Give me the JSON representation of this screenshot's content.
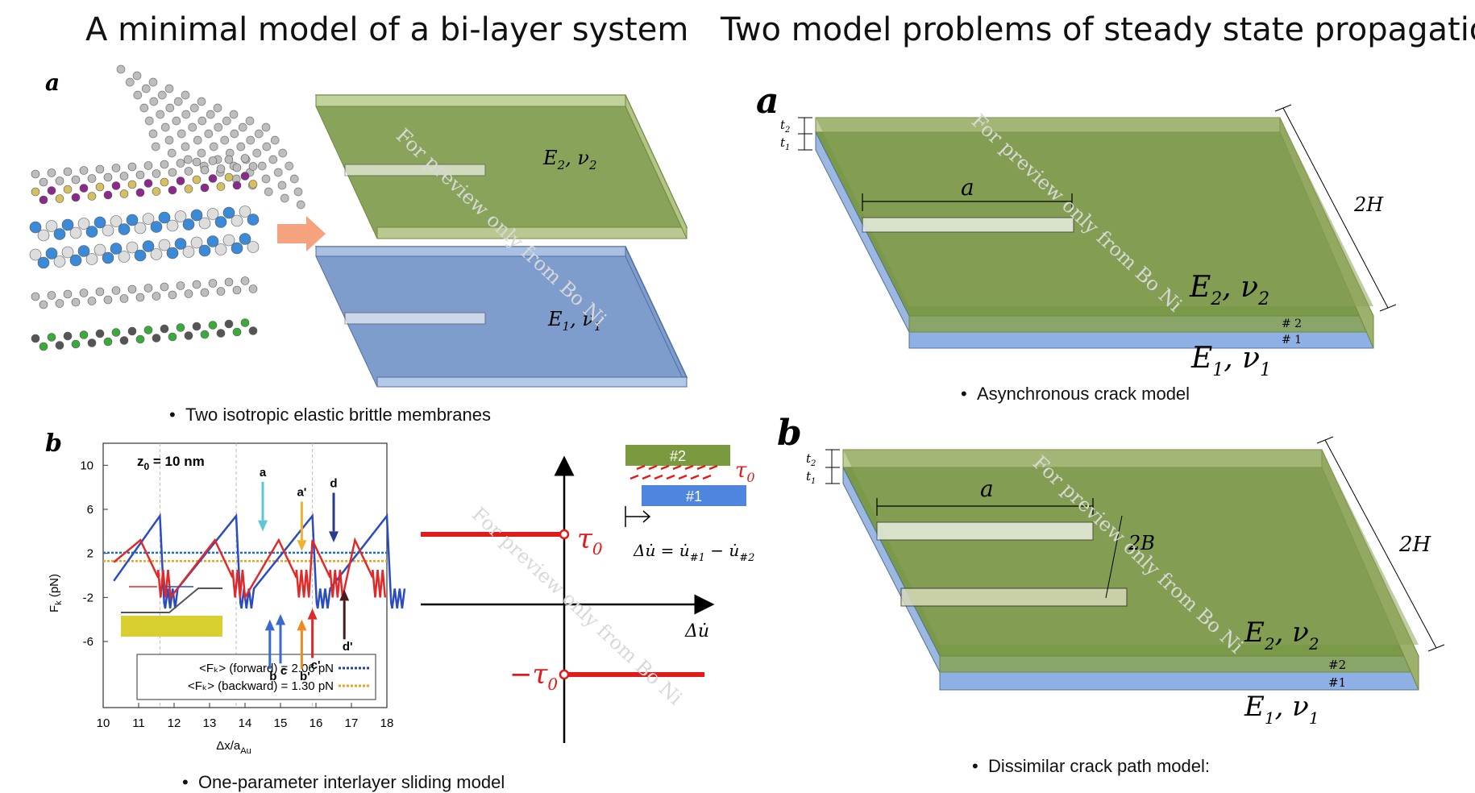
{
  "titles": {
    "left": "A minimal model of a bi-layer system",
    "right": "Two model problems of steady state propagation"
  },
  "panel_labels": {
    "left_a": "a",
    "left_b": "b",
    "right_a": "a",
    "right_b": "b"
  },
  "captions": {
    "membranes": "Two isotropic elastic brittle membranes",
    "sliding": "One-parameter interlayer sliding model",
    "async": "Asynchronous crack model",
    "dissimilar": "Dissimilar crack path model:"
  },
  "watermark": "For preview only from Bo Ni",
  "left_plates": {
    "top_label_E": "E",
    "top_label_sub": "2",
    "top_label_nu": "ν",
    "top_label_nu_sub": "2",
    "bottom_label_E": "E",
    "bottom_label_sub": "1",
    "bottom_label_nu": "ν",
    "bottom_label_nu_sub": "1"
  },
  "force_plot": {
    "z0_label": "z",
    "z0_sub": "0",
    "z0_value": " = 10 nm",
    "ylabel": "F",
    "ylabel_sub": "k",
    "ylabel_unit": " (pN)",
    "xlabel": "Δx/a",
    "xlabel_sub": "Au",
    "yticks": [
      "10",
      "6",
      "2",
      "-2",
      "-6"
    ],
    "xticks": [
      "10",
      "11",
      "12",
      "13",
      "14",
      "15",
      "16",
      "17",
      "18"
    ],
    "legend": [
      {
        "text": "<Fₖ> (forward) = 2.06 pN",
        "color": "#1f3fbf"
      },
      {
        "text": "<Fₖ> (backward) = 1.30 pN",
        "color": "#f0a020"
      }
    ],
    "markers": [
      {
        "label": "a",
        "color": "#5fc6d6"
      },
      {
        "label": "a'",
        "color": "#f0b030"
      },
      {
        "label": "d",
        "color": "#2a3a8a"
      },
      {
        "label": "d'",
        "color": "#4a1a1a"
      },
      {
        "label": "b",
        "color": "#3a6ad0"
      },
      {
        "label": "c",
        "color": "#3a6ad0"
      },
      {
        "label": "b'",
        "color": "#f08a20"
      },
      {
        "label": "c'",
        "color": "#e02a2a"
      }
    ]
  },
  "law_plot": {
    "tau_pos": "τ",
    "tau_pos_sub": "0",
    "tau_neg": "−τ",
    "tau_neg_sub": "0",
    "x_axis": "Δu̇",
    "layer2": "#2",
    "layer1": "#1",
    "tau_small": "τ",
    "tau_small_sub": "0",
    "equation": "Δu̇ = u̇",
    "eq_sub1": "#1",
    "eq_mid": " − u̇",
    "eq_sub2": "#2"
  },
  "async_model": {
    "t2": "t",
    "t2_sub": "2",
    "t1": "t",
    "t1_sub": "1",
    "a_label": "a",
    "h_label": "2H",
    "E2": "E",
    "E2_sub": "2",
    "nu2": ", ν",
    "nu2_sub": "2",
    "E1": "E",
    "E1_sub": "1",
    "nu1": ", ν",
    "nu1_sub": "1",
    "layer2": "# 2",
    "layer1": "# 1"
  },
  "dissimilar_model": {
    "t2": "t",
    "t2_sub": "2",
    "t1": "t",
    "t1_sub": "1",
    "a_label": "a",
    "b_label": "2B",
    "h_label": "2H",
    "E2": "E",
    "E2_sub": "2",
    "nu2": ", ν",
    "nu2_sub": "2",
    "E1": "E",
    "E1_sub": "1",
    "nu1": ", ν",
    "nu1_sub": "1",
    "layer2": "#2",
    "layer1": "#1"
  },
  "colors": {
    "green_layer": "#8aa35a",
    "green_dark": "#6f8a3c",
    "blue_layer": "#7f9dcc",
    "blue_edge": "#9cb8e0",
    "red": "#e21a1a",
    "arrow": "#f4a37e"
  }
}
